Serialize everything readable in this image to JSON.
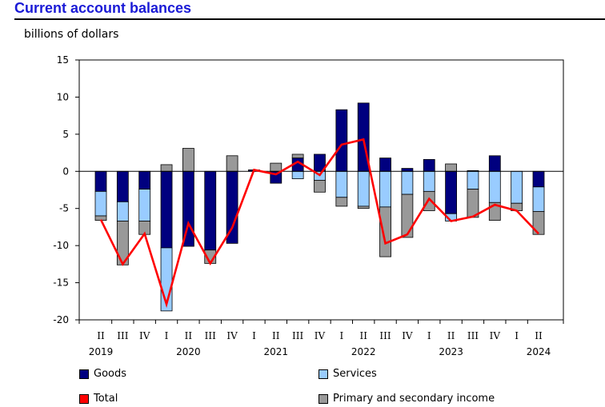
{
  "title": "Current account balances",
  "unit_label": "billions of dollars",
  "colors": {
    "goods": "#00007f",
    "services": "#99ccff",
    "primary_secondary": "#999999",
    "total": "#ff0000"
  },
  "legend": [
    {
      "key": "goods",
      "label": "Goods"
    },
    {
      "key": "services",
      "label": "Services"
    },
    {
      "key": "total",
      "label": "Total"
    },
    {
      "key": "primary_secondary",
      "label": "Primary and secondary income"
    }
  ],
  "chart_data": {
    "type": "bar",
    "stacked": true,
    "title": "Current account balances",
    "ylabel": "billions of dollars",
    "ylim": [
      -20,
      15
    ],
    "yticks": [
      15,
      10,
      5,
      0,
      -5,
      -10,
      -15,
      -20
    ],
    "categories": [
      "II",
      "III",
      "IV",
      "I",
      "II",
      "III",
      "IV",
      "I",
      "II",
      "III",
      "IV",
      "I",
      "II",
      "III",
      "IV",
      "I",
      "II",
      "III",
      "IV",
      "I",
      "II"
    ],
    "year_labels": [
      {
        "year": "2019",
        "category_index": 0
      },
      {
        "year": "2020",
        "category_index": 4
      },
      {
        "year": "2021",
        "category_index": 8
      },
      {
        "year": "2022",
        "category_index": 12
      },
      {
        "year": "2023",
        "category_index": 16
      },
      {
        "year": "2024",
        "category_index": 20
      }
    ],
    "series": [
      {
        "key": "goods",
        "name": "Goods",
        "kind": "bar",
        "values": [
          -2.7,
          -4.1,
          -2.4,
          -10.3,
          -10.1,
          -10.6,
          -9.7,
          0.2,
          -1.6,
          1.8,
          2.3,
          8.3,
          9.2,
          1.8,
          0.4,
          1.6,
          -5.7,
          0.1,
          2.1,
          0.0,
          -2.1
        ]
      },
      {
        "key": "services",
        "name": "Services",
        "kind": "bar",
        "values": [
          -3.3,
          -2.6,
          -4.3,
          -8.5,
          0.0,
          0.0,
          0.0,
          0.0,
          0.0,
          -1.0,
          -1.2,
          -3.5,
          -4.7,
          -4.8,
          -3.1,
          -2.7,
          -1.0,
          -2.4,
          -4.2,
          -4.3,
          -3.3
        ]
      },
      {
        "key": "primary_secondary",
        "name": "Primary and secondary income",
        "kind": "bar",
        "values": [
          -0.6,
          -5.9,
          -1.8,
          0.9,
          3.1,
          -1.8,
          2.1,
          0.0,
          1.1,
          0.5,
          -1.6,
          -1.2,
          -0.3,
          -6.7,
          -5.8,
          -2.6,
          1.0,
          -3.8,
          -2.4,
          -1.0,
          -3.1
        ]
      },
      {
        "key": "total",
        "name": "Total",
        "kind": "line",
        "values": [
          -6.5,
          -12.5,
          -8.4,
          -17.9,
          -7.0,
          -12.4,
          -7.6,
          0.2,
          -0.4,
          1.3,
          -0.5,
          3.6,
          4.3,
          -9.7,
          -8.5,
          -3.7,
          -6.7,
          -6.1,
          -4.5,
          -5.3,
          -8.4
        ]
      }
    ]
  }
}
